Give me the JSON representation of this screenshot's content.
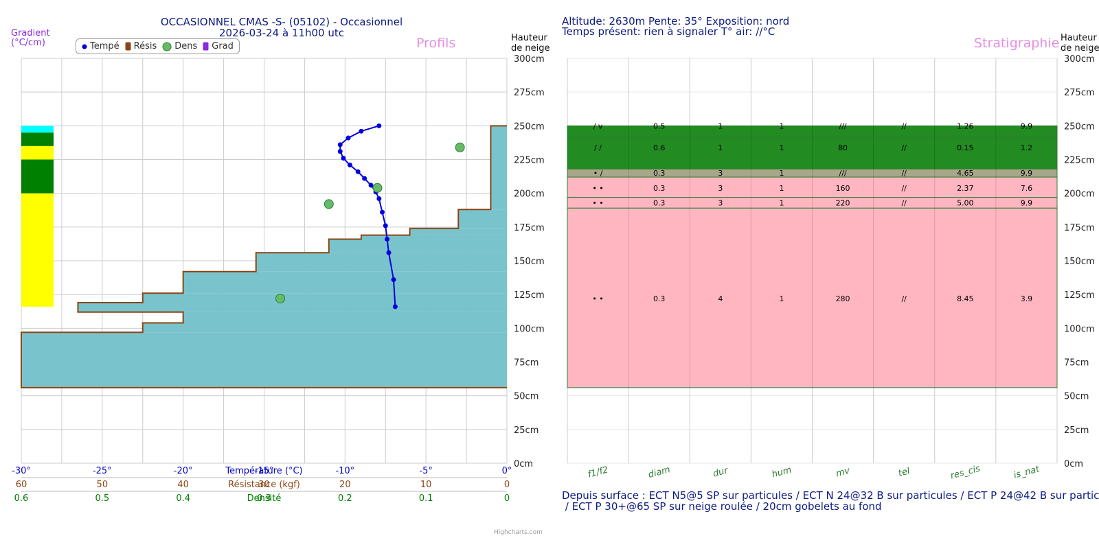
{
  "header": {
    "title_line1": "OCCASIONNEL CMAS -S- (05102) - Occasionnel",
    "title_line2": "2026-03-24 à 11h00 utc",
    "info_line1": "Altitude: 2630m Pente: 35° Exposition: nord",
    "info_line2": "Temps présent: rien à signaler T° air: //°C"
  },
  "labels": {
    "profils": "Profils",
    "stratigraphie": "Stratigraphie",
    "hauteur_line1": "Hauteur",
    "hauteur_line2": "de neige",
    "gradient_line1": "Gradient",
    "gradient_line2": "(°C/cm)",
    "credits": "Highcharts.com"
  },
  "legend": {
    "items": [
      {
        "name": "Tempé",
        "color": "#0000dd",
        "icon": "circle-icon"
      },
      {
        "name": "Résis",
        "color": "#8b4513",
        "icon": "bar-icon"
      },
      {
        "name": "Dens",
        "color": "#66bb6a",
        "icon": "circle-icon"
      },
      {
        "name": "Grad",
        "color": "#8a2be2",
        "icon": "bar-icon"
      }
    ]
  },
  "chart_data": [
    {
      "type": "line",
      "title": "Profils",
      "y_axis": {
        "label": "Hauteur de neige",
        "unit": "cm",
        "range": [
          0,
          300
        ],
        "ticks": [
          0,
          25,
          50,
          75,
          100,
          125,
          150,
          175,
          200,
          225,
          250,
          275,
          300
        ]
      },
      "x_axes": [
        {
          "name": "Température (°C)",
          "color": "#0000cc",
          "range": [
            -30,
            0
          ],
          "ticks": [
            "-30°",
            "-25°",
            "-20°",
            "-15°",
            "-10°",
            "-5°",
            "0°"
          ]
        },
        {
          "name": "Résistance (kgf)",
          "color": "#8b4513",
          "range": [
            60,
            0
          ],
          "ticks": [
            "60",
            "50",
            "40",
            "30",
            "20",
            "10",
            "0"
          ]
        },
        {
          "name": "Densité",
          "color": "#008000",
          "range": [
            0.6,
            0
          ],
          "ticks": [
            "0.6",
            "0.5",
            "0.4",
            "0.3",
            "0.2",
            "0.1",
            "0"
          ]
        }
      ],
      "series": [
        {
          "name": "Tempé",
          "type": "line",
          "color": "#0000dd",
          "points": [
            [
              -7.9,
              250
            ],
            [
              -9.0,
              246
            ],
            [
              -9.8,
              241
            ],
            [
              -10.3,
              236
            ],
            [
              -10.3,
              231
            ],
            [
              -10.1,
              226
            ],
            [
              -9.7,
              221
            ],
            [
              -9.2,
              216
            ],
            [
              -8.8,
              211
            ],
            [
              -8.4,
              206
            ],
            [
              -8.1,
              201
            ],
            [
              -7.9,
              196
            ],
            [
              -7.7,
              186
            ],
            [
              -7.5,
              176
            ],
            [
              -7.4,
              166
            ],
            [
              -7.3,
              156
            ],
            [
              -7.0,
              136
            ],
            [
              -6.9,
              116
            ]
          ]
        },
        {
          "name": "Résis",
          "type": "step-area",
          "color": "#8b4513",
          "fill": "#79c3cc",
          "layers": [
            {
              "bottom": 56,
              "top": 97,
              "value": 60
            },
            {
              "bottom": 97,
              "top": 104,
              "value": 45
            },
            {
              "bottom": 104,
              "top": 112,
              "value": 40
            },
            {
              "bottom": 112,
              "top": 119,
              "value": 53
            },
            {
              "bottom": 119,
              "top": 126,
              "value": 45
            },
            {
              "bottom": 126,
              "top": 142,
              "value": 40
            },
            {
              "bottom": 142,
              "top": 156,
              "value": 31
            },
            {
              "bottom": 156,
              "top": 166,
              "value": 22
            },
            {
              "bottom": 166,
              "top": 169,
              "value": 18
            },
            {
              "bottom": 169,
              "top": 174,
              "value": 12
            },
            {
              "bottom": 174,
              "top": 188,
              "value": 6
            },
            {
              "bottom": 188,
              "top": 250,
              "value": 2
            },
            {
              "bottom": 250,
              "top": 250,
              "value": 0
            }
          ]
        },
        {
          "name": "Dens",
          "type": "scatter",
          "color": "#66bb6a",
          "points": [
            [
              0.058,
              234
            ],
            [
              0.16,
              204
            ],
            [
              0.22,
              192
            ],
            [
              0.28,
              122
            ]
          ]
        },
        {
          "name": "Grad",
          "type": "bar",
          "color": "#8a2be2",
          "layers": [
            {
              "bottom": 116,
              "top": 200,
              "color": "#ffff00"
            },
            {
              "bottom": 200,
              "top": 225,
              "color": "#008000"
            },
            {
              "bottom": 225,
              "top": 235,
              "color": "#ffff00"
            },
            {
              "bottom": 235,
              "top": 245,
              "color": "#008000"
            },
            {
              "bottom": 245,
              "top": 250,
              "color": "#00ffff"
            }
          ]
        }
      ]
    },
    {
      "type": "table",
      "title": "Stratigraphie",
      "y_axis": {
        "label": "Hauteur de neige",
        "unit": "cm",
        "range": [
          0,
          300
        ],
        "ticks": [
          0,
          25,
          50,
          75,
          100,
          125,
          150,
          175,
          200,
          225,
          250,
          275,
          300
        ]
      },
      "columns": [
        "f1/f2",
        "diam",
        "dur",
        "hum",
        "mv",
        "tel",
        "res_cis",
        "is_nat"
      ],
      "layers": [
        {
          "bottom": 241,
          "top": 250,
          "color": "#228b22",
          "label_h": 250,
          "cells": [
            "/ v",
            "0.5",
            "1",
            "1",
            "///",
            "//",
            "1.26",
            "9.9"
          ]
        },
        {
          "bottom": 218,
          "top": 241,
          "color": "#228b22",
          "label_h": 234,
          "cells": [
            "/ /",
            "0.6",
            "1",
            "1",
            "80",
            "//",
            "0.15",
            "1.2"
          ]
        },
        {
          "bottom": 212,
          "top": 218,
          "color": "#a8a78a",
          "label_h": 215,
          "cells": [
            "• /",
            "0.3",
            "3",
            "1",
            "///",
            "//",
            "4.65",
            "9.9"
          ]
        },
        {
          "bottom": 197,
          "top": 212,
          "color": "#ffb6c1",
          "label_h": 204,
          "cells": [
            "• •",
            "0.3",
            "3",
            "1",
            "160",
            "//",
            "2.37",
            "7.6"
          ]
        },
        {
          "bottom": 189,
          "top": 197,
          "color": "#ffb6c1",
          "label_h": 193,
          "cells": [
            "• •",
            "0.3",
            "3",
            "1",
            "220",
            "//",
            "5.00",
            "9.9"
          ]
        },
        {
          "bottom": 56,
          "top": 189,
          "color": "#ffb6c1",
          "label_h": 122,
          "cells": [
            "• •",
            "0.3",
            "4",
            "1",
            "280",
            "//",
            "8.45",
            "3.9"
          ]
        }
      ]
    }
  ],
  "footer": {
    "line1": "Depuis surface : ECT N5@5 SP sur particules / ECT N 24@32 B sur particules / ECT P 24@42 B sur partic",
    "line2": " / ECT P 30+@65 SP sur neige roulée / 20cm gobelets au fond"
  }
}
